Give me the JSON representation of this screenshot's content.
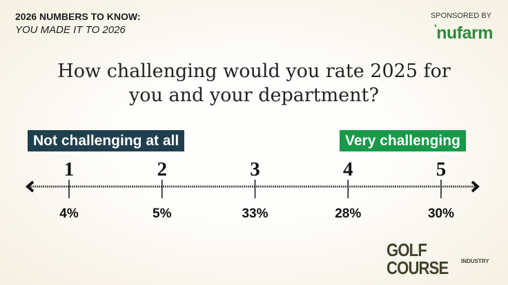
{
  "header": {
    "kicker": "2026 NUMBERS TO KNOW:",
    "subtitle": "YOU MADE IT TO 2026",
    "sponsored": "SPONSORED BY",
    "sponsor_logo": "nufarm"
  },
  "chart_data": {
    "type": "scale",
    "title": "How challenging would you rate 2025 for you and your department?",
    "title_lines": [
      "How challenging would you rate 2025 for",
      "you and your department?"
    ],
    "low_label": "Not challenging at all",
    "high_label": "Very challenging",
    "categories": [
      "1",
      "2",
      "3",
      "4",
      "5"
    ],
    "values": [
      4,
      5,
      33,
      28,
      30
    ],
    "value_labels": [
      "4%",
      "5%",
      "33%",
      "28%",
      "30%"
    ],
    "colors": {
      "low": "#1f3f4e",
      "high": "#18994a"
    }
  },
  "footer": {
    "logo_main": "GOLF COURSE",
    "logo_sub": "INDUSTRY"
  }
}
